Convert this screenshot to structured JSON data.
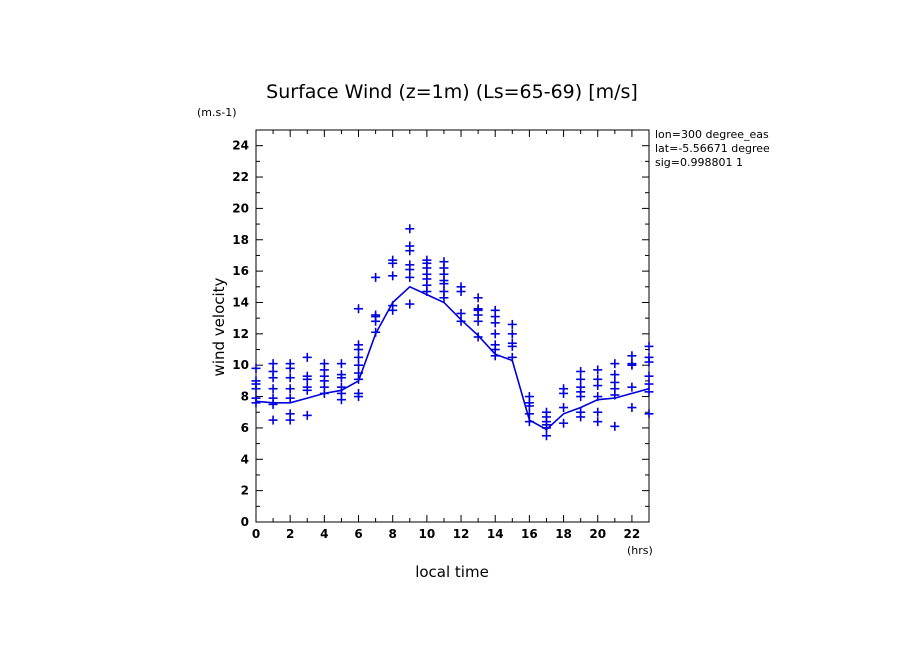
{
  "chart_data": {
    "type": "scatter",
    "title": "Surface Wind (z=1m) (Ls=65-69) [m/s]",
    "y_units": "(m.s-1)",
    "x_units": "(hrs)",
    "xlabel": "local time",
    "ylabel": "wind velocity",
    "info": [
      "lon=300 degree_eas",
      "lat=-5.56671 degree",
      "sig=0.998801 1"
    ],
    "xlim": [
      0,
      23
    ],
    "ylim": [
      0,
      25
    ],
    "xticks": [
      0,
      2,
      4,
      6,
      8,
      10,
      12,
      14,
      16,
      18,
      20,
      22
    ],
    "yticks": [
      0,
      2,
      4,
      6,
      8,
      10,
      12,
      14,
      16,
      18,
      20,
      22,
      24
    ],
    "grid": false,
    "color": "#0000dd",
    "series": [
      {
        "kind": "line",
        "x": [
          0,
          1,
          2,
          3,
          4,
          5,
          6,
          7,
          8,
          9,
          10,
          11,
          12,
          13,
          14,
          15,
          16,
          17,
          18,
          19,
          20,
          21,
          22,
          23
        ],
        "y": [
          7.7,
          7.6,
          7.6,
          7.9,
          8.2,
          8.4,
          9.0,
          12.0,
          14.0,
          15.0,
          14.5,
          14.0,
          12.9,
          11.9,
          10.7,
          10.3,
          6.5,
          5.9,
          6.9,
          7.3,
          7.8,
          7.9,
          8.2,
          8.5
        ]
      },
      {
        "kind": "points",
        "points": [
          [
            0,
            7.6
          ],
          [
            0,
            7.9
          ],
          [
            0,
            8.5
          ],
          [
            0,
            8.8
          ],
          [
            0,
            9.0
          ],
          [
            0,
            9.8
          ],
          [
            1,
            6.5
          ],
          [
            1,
            7.5
          ],
          [
            1,
            7.9
          ],
          [
            1,
            8.5
          ],
          [
            1,
            9.2
          ],
          [
            1,
            9.6
          ],
          [
            1,
            10.1
          ],
          [
            2,
            6.5
          ],
          [
            2,
            6.9
          ],
          [
            2,
            7.9
          ],
          [
            2,
            8.5
          ],
          [
            2,
            9.2
          ],
          [
            2,
            9.8
          ],
          [
            2,
            10.1
          ],
          [
            3,
            6.8
          ],
          [
            3,
            8.4
          ],
          [
            3,
            8.6
          ],
          [
            3,
            9.1
          ],
          [
            3,
            9.3
          ],
          [
            3,
            10.5
          ],
          [
            4,
            8.2
          ],
          [
            4,
            8.6
          ],
          [
            4,
            9.0
          ],
          [
            4,
            9.3
          ],
          [
            4,
            9.7
          ],
          [
            4,
            10.1
          ],
          [
            5,
            7.8
          ],
          [
            5,
            8.2
          ],
          [
            5,
            8.6
          ],
          [
            5,
            9.2
          ],
          [
            5,
            9.4
          ],
          [
            5,
            10.1
          ],
          [
            6,
            8.0
          ],
          [
            6,
            8.2
          ],
          [
            6,
            9.1
          ],
          [
            6,
            9.5
          ],
          [
            6,
            10.0
          ],
          [
            6,
            10.5
          ],
          [
            6,
            11.0
          ],
          [
            6,
            11.3
          ],
          [
            6,
            13.6
          ],
          [
            7,
            12.1
          ],
          [
            7,
            12.8
          ],
          [
            7,
            13.1
          ],
          [
            7,
            13.2
          ],
          [
            7,
            15.6
          ],
          [
            8,
            13.5
          ],
          [
            8,
            13.8
          ],
          [
            8,
            15.7
          ],
          [
            8,
            16.5
          ],
          [
            8,
            16.7
          ],
          [
            9,
            13.9
          ],
          [
            9,
            15.6
          ],
          [
            9,
            16.1
          ],
          [
            9,
            16.4
          ],
          [
            9,
            17.3
          ],
          [
            9,
            17.6
          ],
          [
            9,
            18.7
          ],
          [
            10,
            14.7
          ],
          [
            10,
            15.1
          ],
          [
            10,
            15.5
          ],
          [
            10,
            15.8
          ],
          [
            10,
            16.2
          ],
          [
            10,
            16.5
          ],
          [
            10,
            16.7
          ],
          [
            11,
            14.3
          ],
          [
            11,
            14.7
          ],
          [
            11,
            15.2
          ],
          [
            11,
            15.4
          ],
          [
            11,
            15.8
          ],
          [
            11,
            16.2
          ],
          [
            11,
            16.6
          ],
          [
            12,
            12.8
          ],
          [
            12,
            13.3
          ],
          [
            12,
            14.7
          ],
          [
            12,
            15.0
          ],
          [
            13,
            11.8
          ],
          [
            13,
            12.8
          ],
          [
            13,
            13.2
          ],
          [
            13,
            13.5
          ],
          [
            13,
            13.6
          ],
          [
            13,
            14.3
          ],
          [
            14,
            10.6
          ],
          [
            14,
            11.0
          ],
          [
            14,
            11.3
          ],
          [
            14,
            12.0
          ],
          [
            14,
            12.7
          ],
          [
            14,
            13.1
          ],
          [
            14,
            13.5
          ],
          [
            15,
            10.5
          ],
          [
            15,
            11.2
          ],
          [
            15,
            11.4
          ],
          [
            15,
            12.0
          ],
          [
            15,
            12.6
          ],
          [
            16,
            6.4
          ],
          [
            16,
            6.9
          ],
          [
            16,
            7.4
          ],
          [
            16,
            7.6
          ],
          [
            16,
            8.0
          ],
          [
            17,
            5.5
          ],
          [
            17,
            6.0
          ],
          [
            17,
            6.2
          ],
          [
            17,
            6.4
          ],
          [
            17,
            6.7
          ],
          [
            17,
            7.0
          ],
          [
            18,
            6.3
          ],
          [
            18,
            7.3
          ],
          [
            18,
            8.2
          ],
          [
            18,
            8.5
          ],
          [
            19,
            6.7
          ],
          [
            19,
            7.0
          ],
          [
            19,
            8.0
          ],
          [
            19,
            8.3
          ],
          [
            19,
            8.6
          ],
          [
            19,
            9.1
          ],
          [
            19,
            9.6
          ],
          [
            20,
            6.4
          ],
          [
            20,
            7.0
          ],
          [
            20,
            8.0
          ],
          [
            20,
            8.7
          ],
          [
            20,
            9.1
          ],
          [
            20,
            9.7
          ],
          [
            21,
            6.1
          ],
          [
            21,
            8.1
          ],
          [
            21,
            8.5
          ],
          [
            21,
            8.9
          ],
          [
            21,
            9.4
          ],
          [
            21,
            10.1
          ],
          [
            22,
            7.3
          ],
          [
            22,
            8.6
          ],
          [
            22,
            10.0
          ],
          [
            22,
            10.1
          ],
          [
            22,
            10.6
          ],
          [
            23,
            6.9
          ],
          [
            23,
            8.3
          ],
          [
            23,
            8.8
          ],
          [
            23,
            9.3
          ],
          [
            23,
            10.2
          ],
          [
            23,
            10.5
          ],
          [
            23,
            11.2
          ]
        ]
      }
    ]
  }
}
